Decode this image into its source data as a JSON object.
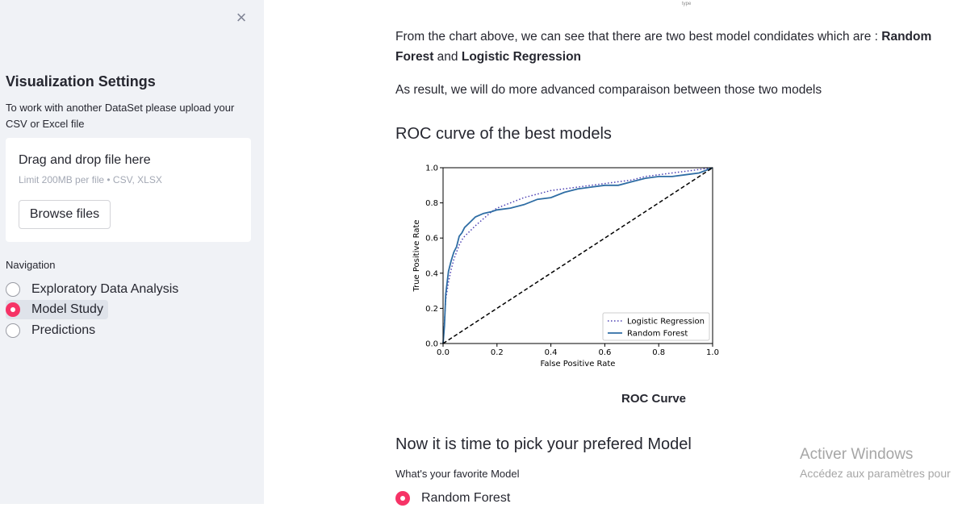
{
  "sidebar": {
    "close_icon": "×",
    "title": "Visualization Settings",
    "description": "To work with another DataSet please upload your CSV or Excel file",
    "uploader": {
      "title": "Drag and drop file here",
      "limit": "Limit 200MB per file • CSV, XLSX",
      "browse_label": "Browse files"
    },
    "nav_label": "Navigation",
    "nav_items": [
      {
        "label": "Exploratory Data Analysis",
        "selected": false
      },
      {
        "label": "Model Study",
        "selected": true
      },
      {
        "label": "Predictions",
        "selected": false
      }
    ]
  },
  "main": {
    "top_label": "type",
    "para1_prefix": "From the chart above, we can see that there are two best model condidates which are : ",
    "para1_bold1": "Random Forest",
    "para1_mid": " and ",
    "para1_bold2": "Logistic Regression",
    "para2": "As result, we will do more advanced comparaison between those two models",
    "roc_heading": "ROC curve of the best models",
    "chart_caption": "ROC Curve",
    "pick_heading": "Now it is time to pick your prefered Model",
    "fav_label": "What's your favorite Model",
    "fav_option": "Random Forest"
  },
  "watermark": {
    "line1": "Activer Windows",
    "line2": "Accédez aux paramètres pour"
  },
  "colors": {
    "accent": "#f63366",
    "sidebar_bg": "#f0f2f6",
    "logistic": "#4b3fb3",
    "forest": "#2e6da4"
  },
  "chart_data": {
    "type": "line",
    "title": "",
    "xlabel": "False Positive Rate",
    "ylabel": "True Positive Rate",
    "xlim": [
      0,
      1
    ],
    "ylim": [
      0,
      1
    ],
    "xticks": [
      "0.0",
      "0.2",
      "0.4",
      "0.6",
      "0.8",
      "1.0"
    ],
    "yticks": [
      "0.0",
      "0.2",
      "0.4",
      "0.6",
      "0.8",
      "1.0"
    ],
    "legend_position": "lower-right",
    "series": [
      {
        "name": "Logistic Regression",
        "style": "dotted",
        "x": [
          0,
          0.005,
          0.01,
          0.02,
          0.03,
          0.04,
          0.05,
          0.06,
          0.07,
          0.08,
          0.1,
          0.12,
          0.15,
          0.18,
          0.2,
          0.25,
          0.3,
          0.35,
          0.4,
          0.45,
          0.5,
          0.55,
          0.6,
          0.65,
          0.7,
          0.75,
          0.8,
          0.85,
          0.9,
          0.95,
          1.0
        ],
        "y": [
          0,
          0.12,
          0.25,
          0.35,
          0.42,
          0.48,
          0.52,
          0.56,
          0.59,
          0.61,
          0.64,
          0.67,
          0.71,
          0.75,
          0.77,
          0.8,
          0.83,
          0.85,
          0.87,
          0.88,
          0.89,
          0.9,
          0.91,
          0.92,
          0.93,
          0.95,
          0.96,
          0.97,
          0.98,
          0.99,
          1.0
        ]
      },
      {
        "name": "Random Forest",
        "style": "solid",
        "x": [
          0,
          0.005,
          0.01,
          0.02,
          0.03,
          0.04,
          0.05,
          0.06,
          0.07,
          0.08,
          0.1,
          0.12,
          0.15,
          0.18,
          0.2,
          0.25,
          0.3,
          0.35,
          0.4,
          0.45,
          0.5,
          0.55,
          0.6,
          0.65,
          0.7,
          0.75,
          0.8,
          0.85,
          0.9,
          0.95,
          1.0
        ],
        "y": [
          0,
          0.1,
          0.28,
          0.41,
          0.47,
          0.52,
          0.55,
          0.61,
          0.63,
          0.66,
          0.69,
          0.72,
          0.74,
          0.75,
          0.76,
          0.77,
          0.79,
          0.82,
          0.83,
          0.86,
          0.88,
          0.89,
          0.9,
          0.9,
          0.92,
          0.94,
          0.95,
          0.95,
          0.96,
          0.97,
          1.0
        ]
      },
      {
        "name": "",
        "style": "dashed",
        "x": [
          0,
          1
        ],
        "y": [
          0,
          1
        ]
      }
    ]
  }
}
